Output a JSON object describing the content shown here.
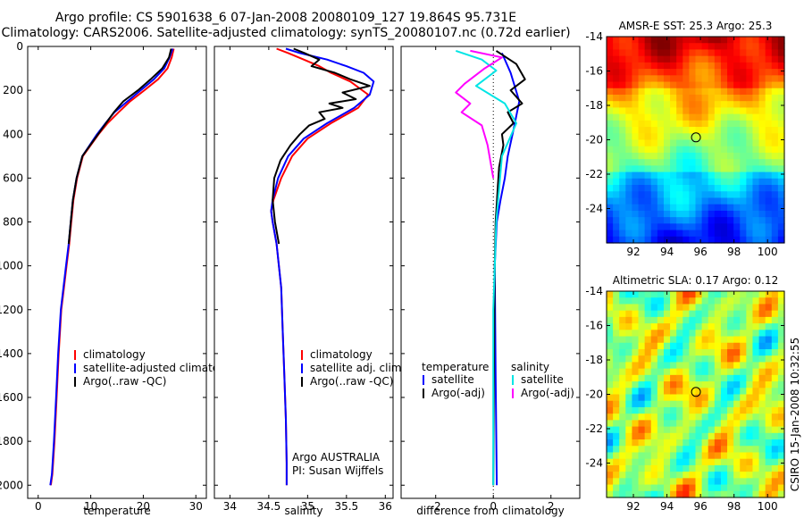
{
  "title": {
    "line1": "Argo profile: CS 5901638_6 07-Jan-2008 20080109_127 19.864S 95.731E",
    "line2": "Climatology: CARS2006. Satellite-adjusted climatology: synTS_20080107.nc (0.72d earlier)"
  },
  "colors": {
    "climatology": "#ff0000",
    "satellite": "#0000ff",
    "argo": "#000000",
    "sat_salinity": "#00e5e5",
    "argo_salinity": "#ff00ff"
  },
  "depth_ticks": [
    "0",
    "200",
    "400",
    "600",
    "800",
    "1000",
    "1200",
    "1400",
    "1600",
    "1800",
    "2000"
  ],
  "chart_data": [
    {
      "type": "line",
      "id": "temperature",
      "xlabel": "temperature",
      "xlim": [
        -2,
        32
      ],
      "ylim": [
        2060,
        0
      ],
      "xticks": [
        0,
        10,
        20,
        30
      ],
      "xtick_labels": [
        "0",
        "10",
        "20",
        "30"
      ],
      "legend": [
        "climatology",
        "satellite-adjusted climatology",
        "Argo(..raw -QC)"
      ],
      "series": [
        {
          "name": "climatology",
          "color": "#ff0000",
          "x": [
            25.8,
            25.4,
            24.6,
            22.8,
            20.2,
            17.5,
            15.3,
            13.2,
            11.5,
            10.0,
            8.5,
            7.4,
            6.7,
            6.3,
            5.9,
            5.4,
            4.9,
            4.4,
            3.9,
            3.5,
            3.1,
            2.7,
            2.4
          ],
          "y": [
            10,
            50,
            100,
            150,
            200,
            250,
            300,
            350,
            400,
            450,
            500,
            600,
            700,
            800,
            900,
            1000,
            1100,
            1200,
            1400,
            1600,
            1800,
            1950,
            2000
          ]
        },
        {
          "name": "satellite-adjusted climatology",
          "color": "#0000ff",
          "x": [
            25.6,
            25.0,
            24.0,
            22.0,
            19.5,
            17.0,
            14.5,
            12.8,
            11.2,
            9.8,
            8.4,
            7.3,
            6.6,
            6.2,
            5.8,
            5.3,
            4.8,
            4.3,
            3.8,
            3.4,
            3.0,
            2.6,
            2.3
          ],
          "y": [
            10,
            50,
            100,
            150,
            200,
            250,
            300,
            350,
            400,
            450,
            500,
            600,
            700,
            800,
            900,
            1000,
            1100,
            1200,
            1400,
            1600,
            1800,
            1950,
            2000
          ]
        },
        {
          "name": "Argo(..raw -QC)",
          "color": "#000000",
          "x": [
            25.3,
            24.9,
            23.6,
            21.4,
            19.0,
            16.2,
            14.4,
            12.9,
            11.4,
            9.9,
            8.4,
            7.3,
            6.6,
            6.2,
            5.8
          ],
          "y": [
            10,
            50,
            100,
            150,
            200,
            250,
            300,
            350,
            400,
            450,
            500,
            600,
            700,
            800,
            900
          ]
        }
      ]
    },
    {
      "type": "line",
      "id": "salinity",
      "xlabel": "salinity",
      "xlim": [
        33.8,
        36.1
      ],
      "ylim": [
        2060,
        0
      ],
      "xticks": [
        34,
        34.5,
        35,
        35.5,
        36
      ],
      "xtick_labels": [
        "34",
        "34.5",
        "35",
        "35.5",
        "36"
      ],
      "legend": [
        "climatology",
        "satellite adj. clim.",
        "Argo(..raw -QC)"
      ],
      "annotation": [
        "Argo AUSTRALIA",
        "PI: Susan Wijffels"
      ],
      "series": [
        {
          "name": "climatology",
          "color": "#ff0000",
          "x": [
            34.6,
            34.75,
            34.95,
            35.15,
            35.3,
            35.55,
            35.78,
            35.65,
            35.3,
            35.0,
            34.8,
            34.66,
            34.56,
            34.53,
            34.55,
            34.6,
            34.63,
            34.66,
            34.68,
            34.7,
            34.72,
            34.73,
            34.73
          ],
          "y": [
            10,
            30,
            60,
            90,
            120,
            160,
            220,
            280,
            350,
            420,
            500,
            600,
            700,
            750,
            800,
            900,
            1000,
            1100,
            1300,
            1500,
            1700,
            1900,
            2000
          ]
        },
        {
          "name": "satellite adj. clim.",
          "color": "#0000ff",
          "x": [
            34.72,
            34.9,
            35.25,
            35.5,
            35.72,
            35.85,
            35.8,
            35.6,
            35.25,
            34.95,
            34.75,
            34.62,
            34.55,
            34.53,
            34.55,
            34.6,
            34.63,
            34.66,
            34.68,
            34.7,
            34.72,
            34.73,
            34.73
          ],
          "y": [
            10,
            30,
            60,
            90,
            120,
            160,
            220,
            280,
            350,
            420,
            500,
            600,
            700,
            750,
            800,
            900,
            1000,
            1100,
            1300,
            1500,
            1700,
            1900,
            2000
          ]
        },
        {
          "name": "Argo(..raw -QC)",
          "color": "#000000",
          "x": [
            34.82,
            34.96,
            35.15,
            35.05,
            35.35,
            35.55,
            35.8,
            35.45,
            35.62,
            35.28,
            35.45,
            35.15,
            35.22,
            35.02,
            34.9,
            34.78,
            34.65,
            34.57,
            34.55,
            34.58,
            34.63
          ],
          "y": [
            10,
            30,
            60,
            90,
            120,
            150,
            180,
            210,
            240,
            260,
            280,
            300,
            330,
            360,
            400,
            450,
            520,
            600,
            700,
            800,
            900
          ]
        }
      ]
    },
    {
      "type": "line",
      "id": "difference",
      "xlabel": "difference from climatology",
      "xlim": [
        -3.2,
        3.0
      ],
      "ylim": [
        2060,
        0
      ],
      "xticks": [
        -2,
        0,
        2
      ],
      "xtick_labels": [
        "-2",
        "0",
        "2"
      ],
      "legend_temperature": [
        "temperature",
        "satellite",
        "Argo(-adj)"
      ],
      "legend_salinity": [
        "salinity",
        "satellite",
        "Argo(-adj)"
      ],
      "series": [
        {
          "name": "temperature satellite",
          "color": "#0000ff",
          "x": [
            0.3,
            0.6,
            0.9,
            0.7,
            0.5,
            0.4,
            0.25,
            0.12,
            0.05,
            0.08,
            0.12
          ],
          "y": [
            30,
            120,
            250,
            380,
            500,
            600,
            700,
            800,
            1000,
            1500,
            2000
          ]
        },
        {
          "name": "temperature Argo(-adj)",
          "color": "#000000",
          "x": [
            0.1,
            0.8,
            1.1,
            0.6,
            1.0,
            0.5,
            0.7,
            0.3,
            0.35,
            0.2,
            0.15,
            0.08,
            0.05,
            0.02,
            0.0
          ],
          "y": [
            20,
            80,
            150,
            200,
            260,
            300,
            350,
            400,
            450,
            550,
            650,
            800,
            1000,
            1500,
            2000
          ]
        },
        {
          "name": "salinity satellite",
          "color": "#00e5e5",
          "x": [
            -1.3,
            -0.4,
            0.1,
            -0.6,
            0.4,
            0.8,
            0.3,
            0.1,
            0.0,
            0.0
          ],
          "y": [
            20,
            60,
            110,
            180,
            260,
            350,
            500,
            800,
            1200,
            2000
          ]
        },
        {
          "name": "salinity Argo(-adj)",
          "color": "#ff00ff",
          "x": [
            -0.8,
            0.3,
            -0.3,
            -1.0,
            -1.3,
            -0.8,
            -1.1,
            -0.4,
            -0.2,
            0.0
          ],
          "y": [
            20,
            50,
            100,
            170,
            210,
            260,
            300,
            360,
            450,
            600
          ]
        }
      ]
    },
    {
      "type": "heatmap",
      "id": "sst",
      "title": "AMSR-E SST: 25.3 Argo: 25.3",
      "xlim": [
        90.4,
        101.0
      ],
      "ylim": [
        -26,
        -14
      ],
      "xticks": [
        92,
        94,
        96,
        98,
        100
      ],
      "yticks": [
        -14,
        -16,
        -18,
        -20,
        -22,
        -24
      ],
      "xtick_labels": [
        "92",
        "94",
        "96",
        "98",
        "100"
      ],
      "ytick_labels": [
        "-14",
        "-16",
        "-18",
        "-20",
        "-22",
        "-24"
      ],
      "marker": {
        "lon": 95.73,
        "lat": -19.86
      }
    },
    {
      "type": "heatmap",
      "id": "sla",
      "title": "Altimetric SLA: 0.17 Argo: 0.12",
      "xlim": [
        90.4,
        101.0
      ],
      "ylim": [
        -26,
        -14
      ],
      "xticks": [
        92,
        94,
        96,
        98,
        100
      ],
      "yticks": [
        -14,
        -16,
        -18,
        -20,
        -22,
        -24
      ],
      "xtick_labels": [
        "92",
        "94",
        "96",
        "98",
        "100"
      ],
      "ytick_labels": [
        "-14",
        "-16",
        "-18",
        "-20",
        "-22",
        "-24"
      ],
      "marker": {
        "lon": 95.73,
        "lat": -19.86
      }
    }
  ],
  "side_label": "CSIRO 15-Jan-2008 10:32:55"
}
